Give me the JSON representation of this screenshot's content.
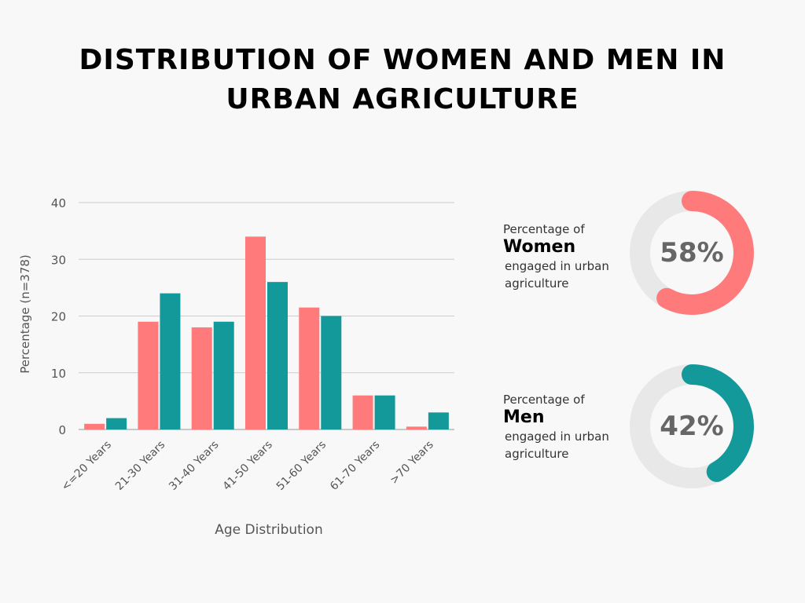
{
  "title": {
    "line1": "DISTRIBUTION OF WOMEN AND MEN IN",
    "line2": "URBAN AGRICULTURE"
  },
  "colors": {
    "women": "#ff7b7b",
    "men": "#14999b",
    "ring_track": "#e8e8e8",
    "grid": "#cccccc"
  },
  "chart_data": [
    {
      "type": "bar",
      "xlabel": "Age Distribution",
      "ylabel": "Percentage (n=378)",
      "ylim": [
        0,
        40
      ],
      "yticks": [
        0,
        10,
        20,
        30,
        40
      ],
      "grid": true,
      "categories": [
        "<=20 Years",
        "21-30 Years",
        "31-40 Years",
        "41-50 Years",
        "51-60 Years",
        "61-70 Years",
        ">70 Years"
      ],
      "series": [
        {
          "values": [
            1,
            19,
            18,
            34,
            21.5,
            6,
            0.5
          ],
          "color": "#ff7b7b"
        },
        {
          "values": [
            2,
            24,
            19,
            26,
            20,
            6,
            3
          ],
          "color": "#14999b"
        }
      ]
    },
    {
      "type": "pie",
      "label": "58%",
      "value": 58,
      "color": "#ff7b7b"
    },
    {
      "type": "pie",
      "label": "42%",
      "value": 42,
      "color": "#14999b"
    }
  ],
  "stats": {
    "women": {
      "pre": "Percentage of",
      "strong": "Women",
      "post1": "engaged in urban",
      "post2": "agriculture"
    },
    "men": {
      "pre": "Percentage of",
      "strong": "Men",
      "post1": "engaged in urban",
      "post2": "agriculture"
    }
  }
}
